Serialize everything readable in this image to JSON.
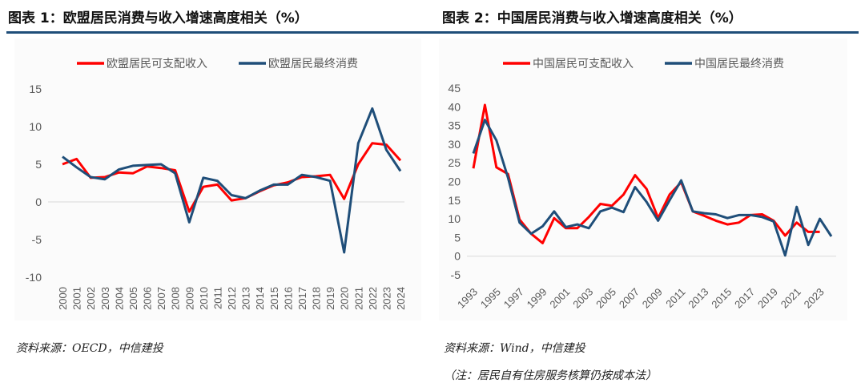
{
  "left": {
    "title": "图表 1：欧盟居民消费与收入增速高度相关（%）",
    "source": "资料来源：OECD，中信建投"
  },
  "right": {
    "title": "图表 2：中国居民消费与收入增速高度相关（%）",
    "source": "资料来源：Wind，中信建投",
    "note": "（注：居民自有住房服务核算仍按成本法）"
  },
  "colors": {
    "income": "#ff0000",
    "consumption": "#1f4e79",
    "rule": "#1f4e79"
  },
  "chart_data": [
    {
      "type": "line",
      "x": [
        2000,
        2001,
        2002,
        2003,
        2004,
        2005,
        2006,
        2007,
        2008,
        2009,
        2010,
        2011,
        2012,
        2013,
        2014,
        2015,
        2016,
        2017,
        2018,
        2019,
        2020,
        2021,
        2022,
        2023,
        2024
      ],
      "ylim": [
        -10,
        15
      ],
      "yticks": [
        -10,
        -5,
        0,
        5,
        10,
        15
      ],
      "xtick_labels": [
        "2000",
        "2001",
        "2002",
        "2003",
        "2004",
        "2005",
        "2006",
        "2007",
        "2008",
        "2009",
        "2010",
        "2011",
        "2012",
        "2013",
        "2014",
        "2015",
        "2016",
        "2017",
        "2018",
        "2019",
        "2020",
        "2021",
        "2022",
        "2023",
        "2024"
      ],
      "legend": "top",
      "series": [
        {
          "name": "欧盟居民可支配收入",
          "color": "#ff0000",
          "values": [
            5.0,
            5.7,
            3.2,
            3.3,
            3.9,
            3.8,
            4.7,
            4.5,
            4.2,
            -1.3,
            2.0,
            2.3,
            0.2,
            0.5,
            1.4,
            2.2,
            2.6,
            3.3,
            3.4,
            3.6,
            0.4,
            5.0,
            7.8,
            7.6,
            5.5
          ]
        },
        {
          "name": "欧盟居民最终消费",
          "color": "#1f4e79",
          "values": [
            6.0,
            4.6,
            3.3,
            3.0,
            4.3,
            4.8,
            4.9,
            5.0,
            3.8,
            -2.7,
            3.2,
            2.8,
            0.9,
            0.5,
            1.5,
            2.3,
            2.3,
            3.6,
            3.3,
            2.8,
            -6.7,
            7.8,
            12.4,
            6.9,
            4.1
          ]
        }
      ]
    },
    {
      "type": "line",
      "x": [
        1993,
        1994,
        1995,
        1996,
        1997,
        1998,
        1999,
        2000,
        2001,
        2002,
        2003,
        2004,
        2005,
        2006,
        2007,
        2008,
        2009,
        2010,
        2011,
        2012,
        2013,
        2014,
        2015,
        2016,
        2017,
        2018,
        2019,
        2020,
        2021,
        2022,
        2023,
        2024
      ],
      "ylim": [
        -5,
        45
      ],
      "yticks": [
        -5,
        0,
        5,
        10,
        15,
        20,
        25,
        30,
        35,
        40,
        45
      ],
      "xtick_labels": [
        "1993",
        "1995",
        "1997",
        "1999",
        "2001",
        "2003",
        "2005",
        "2007",
        "2009",
        "2011",
        "2013",
        "2015",
        "2017",
        "2019",
        "2021",
        "2023"
      ],
      "legend": "top",
      "series": [
        {
          "name": "中国居民可支配收入",
          "color": "#ff0000",
          "values": [
            23.5,
            40.5,
            23.8,
            22.0,
            9.8,
            6.0,
            3.5,
            10.2,
            7.5,
            7.5,
            10.5,
            14.0,
            13.5,
            16.5,
            21.7,
            18.0,
            10.2,
            16.5,
            19.8,
            12.0,
            10.8,
            9.5,
            8.5,
            9.0,
            11.0,
            11.2,
            9.5,
            5.5,
            9.0,
            6.5,
            6.5,
            null
          ]
        },
        {
          "name": "中国居民最终消费",
          "color": "#1f4e79",
          "values": [
            27.5,
            36.5,
            31.0,
            21.0,
            9.0,
            6.0,
            8.0,
            12.0,
            7.8,
            8.5,
            7.5,
            12.0,
            13.0,
            11.8,
            18.5,
            14.5,
            9.5,
            15.0,
            20.3,
            12.0,
            11.5,
            11.2,
            10.2,
            11.0,
            11.0,
            10.5,
            9.3,
            0.2,
            13.2,
            3.0,
            10.0,
            5.3
          ]
        }
      ]
    }
  ]
}
